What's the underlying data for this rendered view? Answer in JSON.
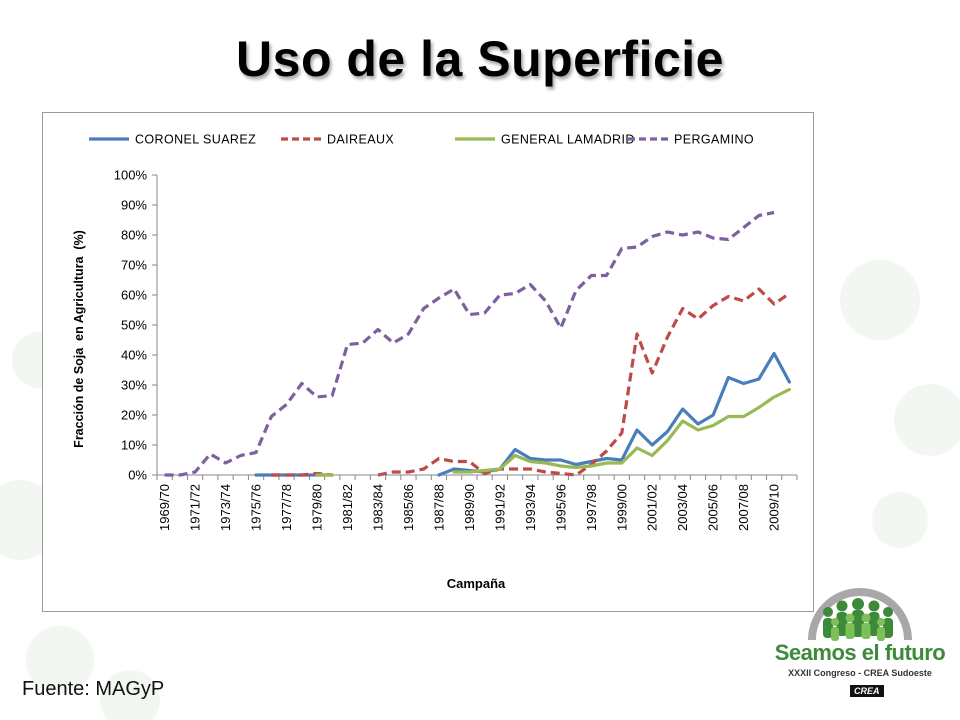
{
  "slide": {
    "title": "Uso de la Superficie",
    "source": "Fuente: MAGyP"
  },
  "logo": {
    "name": "Seamos el futuro",
    "subtitle": "XXXII Congreso - CREA Sudoeste",
    "badge": "CREA"
  },
  "chart_data": {
    "type": "line",
    "xlabel": "Campaña",
    "ylabel": "Fracción de Soja  en Agricultura  (%)",
    "ylim": [
      0,
      1
    ],
    "y_ticks": [
      "0%",
      "10%",
      "20%",
      "30%",
      "40%",
      "50%",
      "60%",
      "70%",
      "80%",
      "90%",
      "100%"
    ],
    "legend_position": "top",
    "grid": false,
    "categories": [
      "1969/70",
      "1970/71",
      "1971/72",
      "1972/73",
      "1973/74",
      "1974/75",
      "1975/76",
      "1976/77",
      "1977/78",
      "1978/79",
      "1979/80",
      "1980/81",
      "1981/82",
      "1982/83",
      "1983/84",
      "1984/85",
      "1985/86",
      "1986/87",
      "1987/88",
      "1988/89",
      "1989/90",
      "1990/91",
      "1991/92",
      "1992/93",
      "1993/94",
      "1994/95",
      "1995/96",
      "1996/97",
      "1997/98",
      "1998/99",
      "1999/00",
      "2000/01",
      "2001/02",
      "2002/03",
      "2003/04",
      "2004/05",
      "2005/06",
      "2006/07",
      "2007/08",
      "2008/09",
      "2009/10",
      "2010/11"
    ],
    "x_tick_labels": [
      "1969/70",
      "1971/72",
      "1973/74",
      "1975/76",
      "1977/78",
      "1979/80",
      "1981/82",
      "1983/84",
      "1985/86",
      "1987/88",
      "1989/90",
      "1991/92",
      "1993/94",
      "1995/96",
      "1997/98",
      "1999/00",
      "2001/02",
      "2003/04",
      "2005/06",
      "2007/08",
      "2009/10"
    ],
    "series": [
      {
        "name": "CORONEL SUAREZ",
        "color": "#4a7ebb",
        "dash": false,
        "values": [
          null,
          null,
          null,
          null,
          null,
          null,
          0,
          0,
          0,
          0,
          0,
          0,
          null,
          null,
          null,
          null,
          null,
          null,
          0,
          0.02,
          0.015,
          0.01,
          0.02,
          0.085,
          0.055,
          0.05,
          0.05,
          0.035,
          0.045,
          0.055,
          0.05,
          0.15,
          0.1,
          0.145,
          0.22,
          0.17,
          0.2,
          0.325,
          0.305,
          0.32,
          0.405,
          0.31
        ]
      },
      {
        "name": "DAIREAUX",
        "color": "#be4b48",
        "dash": true,
        "values": [
          null,
          null,
          null,
          null,
          null,
          null,
          null,
          0,
          0,
          0,
          0.005,
          0,
          null,
          null,
          0,
          0.01,
          0.01,
          0.02,
          0.055,
          0.045,
          0.045,
          0.005,
          0.02,
          0.02,
          0.02,
          0.01,
          0.005,
          0,
          0.035,
          0.08,
          0.14,
          0.47,
          0.34,
          0.46,
          0.555,
          0.52,
          0.565,
          0.595,
          0.58,
          0.62,
          0.57,
          0.605
        ]
      },
      {
        "name": "GENERAL LAMADRID",
        "color": "#98b954",
        "dash": false,
        "values": [
          null,
          null,
          null,
          null,
          null,
          null,
          null,
          null,
          null,
          null,
          0,
          0,
          null,
          null,
          null,
          null,
          null,
          null,
          null,
          0.01,
          0.01,
          0.015,
          0.02,
          0.065,
          0.045,
          0.04,
          0.03,
          0.025,
          0.03,
          0.04,
          0.04,
          0.09,
          0.065,
          0.115,
          0.18,
          0.15,
          0.165,
          0.195,
          0.195,
          0.225,
          0.26,
          0.285
        ]
      },
      {
        "name": "PERGAMINO",
        "color": "#7d60a0",
        "dash": true,
        "values": [
          0,
          0,
          0.01,
          0.07,
          0.04,
          0.065,
          0.075,
          0.195,
          0.235,
          0.305,
          0.26,
          0.265,
          0.435,
          0.44,
          0.485,
          0.44,
          0.47,
          0.555,
          0.59,
          0.62,
          0.535,
          0.54,
          0.6,
          0.605,
          0.635,
          0.58,
          0.49,
          0.615,
          0.665,
          0.665,
          0.755,
          0.76,
          0.795,
          0.81,
          0.8,
          0.81,
          0.79,
          0.785,
          0.825,
          0.865,
          0.875,
          null
        ]
      }
    ]
  }
}
